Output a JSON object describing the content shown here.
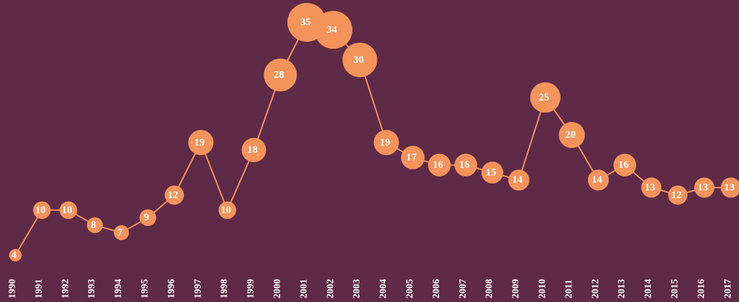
{
  "chart_data": {
    "type": "line",
    "color": "#f4935a",
    "categories": [
      "1990",
      "1991",
      "1992",
      "1993",
      "1994",
      "1995",
      "1996",
      "1997",
      "1998",
      "1999",
      "2000",
      "2001",
      "2002",
      "2003",
      "2004",
      "2005",
      "2006",
      "2007",
      "2008",
      "2009",
      "2010",
      "2011",
      "2012",
      "2013",
      "2014",
      "2015",
      "2016",
      "2017"
    ],
    "values": [
      4,
      10,
      10,
      8,
      7,
      9,
      12,
      19,
      10,
      18,
      28,
      35,
      34,
      30,
      19,
      17,
      16,
      16,
      15,
      14,
      25,
      20,
      14,
      16,
      13,
      12,
      13,
      13
    ]
  }
}
